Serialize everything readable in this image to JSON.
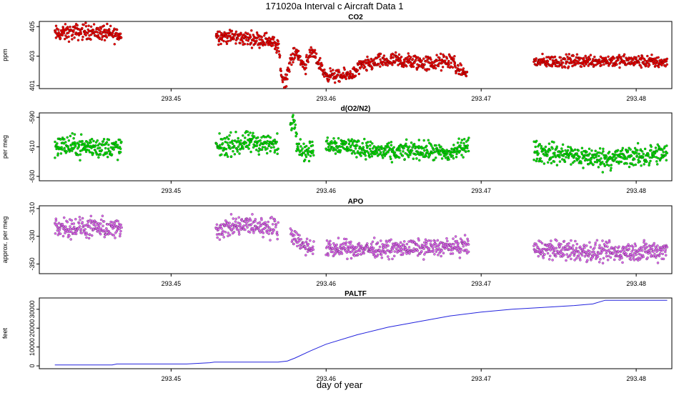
{
  "title": "171020a   Interval c Aircraft Data 1",
  "xlabel": "day of year",
  "colors": {
    "co2": "#ee0000",
    "o2n2": "#00dd00",
    "apo": "#dd66ee",
    "paltf": "#2222dd",
    "outline": "#000000"
  },
  "chart_data": [
    {
      "type": "scatter",
      "title": "CO2",
      "ylabel": "ppm",
      "xlim": [
        293.4415,
        293.4823
      ],
      "ylim": [
        400.8,
        405.35
      ],
      "xticks": [
        293.45,
        293.46,
        293.47,
        293.48
      ],
      "xtick_labels": [
        "293.45",
        "293.46",
        "293.47",
        "293.48"
      ],
      "yticks": [
        401,
        403,
        405
      ],
      "ytick_labels": [
        "401",
        "403",
        "405"
      ],
      "series": [
        {
          "name": "CO2",
          "segments": [
            {
              "x0": 293.4425,
              "x1": 293.4468,
              "trend": [
                [
                  0,
                  404.5
                ],
                [
                  0.5,
                  404.7
                ],
                [
                  1,
                  404.4
                ]
              ],
              "noise": 0.45
            },
            {
              "x0": 293.4529,
              "x1": 293.4569,
              "trend": [
                [
                  0,
                  404.4
                ],
                [
                  0.5,
                  404.2
                ],
                [
                  0.85,
                  404.1
                ],
                [
                  1,
                  403.6
                ]
              ],
              "noise": 0.4
            },
            {
              "x0": 293.4569,
              "x1": 293.4571,
              "trend": [
                [
                  0,
                  403.8
                ],
                [
                  1,
                  402.0
                ]
              ],
              "noise": 0.3
            },
            {
              "x0": 293.4571,
              "x1": 293.4575,
              "trend": [
                [
                  0,
                  401.7
                ],
                [
                  0.5,
                  401.4
                ],
                [
                  1,
                  401.5
                ]
              ],
              "noise": 0.4
            },
            {
              "x0": 293.4575,
              "x1": 293.4582,
              "trend": [
                [
                  0,
                  402.0
                ],
                [
                  0.5,
                  403.0
                ],
                [
                  1,
                  403.4
                ]
              ],
              "noise": 0.35
            },
            {
              "x0": 293.4582,
              "x1": 293.4587,
              "trend": [
                [
                  0,
                  402.9
                ],
                [
                  1,
                  402.2
                ]
              ],
              "noise": 0.35
            },
            {
              "x0": 293.4587,
              "x1": 293.4598,
              "trend": [
                [
                  0,
                  402.8
                ],
                [
                  0.4,
                  403.2
                ],
                [
                  0.7,
                  402.6
                ],
                [
                  1,
                  402.2
                ]
              ],
              "noise": 0.35
            },
            {
              "x0": 293.4598,
              "x1": 293.462,
              "trend": [
                [
                  0,
                  401.8
                ],
                [
                  0.5,
                  401.6
                ],
                [
                  1,
                  401.9
                ]
              ],
              "noise": 0.35
            },
            {
              "x0": 293.462,
              "x1": 293.4645,
              "trend": [
                [
                  0,
                  402.2
                ],
                [
                  0.5,
                  402.6
                ],
                [
                  1,
                  402.7
                ]
              ],
              "noise": 0.4
            },
            {
              "x0": 293.4645,
              "x1": 293.4683,
              "trend": [
                [
                  0,
                  402.7
                ],
                [
                  0.6,
                  402.5
                ],
                [
                  1,
                  402.7
                ]
              ],
              "noise": 0.45
            },
            {
              "x0": 293.4683,
              "x1": 293.4691,
              "trend": [
                [
                  0,
                  402.2
                ],
                [
                  1,
                  401.8
                ]
              ],
              "noise": 0.3
            },
            {
              "x0": 293.4734,
              "x1": 293.482,
              "trend": [
                [
                  0,
                  402.6
                ],
                [
                  0.5,
                  402.7
                ],
                [
                  1,
                  402.6
                ]
              ],
              "noise": 0.35
            }
          ]
        }
      ]
    },
    {
      "type": "scatter",
      "title": "d(O2/N2)",
      "ylabel": "per meg",
      "xlim": [
        293.4415,
        293.4823
      ],
      "ylim": [
        -633,
        -587
      ],
      "xticks": [
        293.45,
        293.46,
        293.47,
        293.48
      ],
      "xtick_labels": [
        "293.45",
        "293.46",
        "293.47",
        "293.48"
      ],
      "yticks": [
        -630,
        -610,
        -590
      ],
      "ytick_labels": [
        "-630",
        "-610",
        "-590"
      ],
      "series": [
        {
          "name": "d(O2/N2)",
          "segments": [
            {
              "x0": 293.4425,
              "x1": 293.4468,
              "trend": [
                [
                  0,
                  -609
                ],
                [
                  1,
                  -611
                ]
              ],
              "noise": 6
            },
            {
              "x0": 293.4529,
              "x1": 293.4569,
              "trend": [
                [
                  0,
                  -610
                ],
                [
                  0.6,
                  -607
                ],
                [
                  1,
                  -609
                ]
              ],
              "noise": 6
            },
            {
              "x0": 293.4577,
              "x1": 293.4581,
              "trend": [
                [
                  0,
                  -596
                ],
                [
                  0.5,
                  -592
                ],
                [
                  1,
                  -598
                ]
              ],
              "noise": 4
            },
            {
              "x0": 293.4581,
              "x1": 293.4592,
              "trend": [
                [
                  0,
                  -608
                ],
                [
                  0.5,
                  -614
                ],
                [
                  1,
                  -612
                ]
              ],
              "noise": 5
            },
            {
              "x0": 293.46,
              "x1": 293.4625,
              "trend": [
                [
                  0,
                  -608
                ],
                [
                  0.5,
                  -609
                ],
                [
                  1,
                  -611
                ]
              ],
              "noise": 5
            },
            {
              "x0": 293.4625,
              "x1": 293.466,
              "trend": [
                [
                  0,
                  -612
                ],
                [
                  0.5,
                  -614
                ],
                [
                  1,
                  -612
                ]
              ],
              "noise": 5
            },
            {
              "x0": 293.466,
              "x1": 293.4692,
              "trend": [
                [
                  0,
                  -612
                ],
                [
                  0.6,
                  -615
                ],
                [
                  1,
                  -608
                ]
              ],
              "noise": 5
            },
            {
              "x0": 293.4734,
              "x1": 293.482,
              "trend": [
                [
                  0,
                  -613
                ],
                [
                  0.5,
                  -618
                ],
                [
                  1,
                  -615
                ]
              ],
              "noise": 6
            }
          ]
        }
      ]
    },
    {
      "type": "scatter",
      "title": "APO",
      "ylabel": "approx. per meg",
      "xlim": [
        293.4415,
        293.4823
      ],
      "ylim": [
        -357,
        -308
      ],
      "xticks": [
        293.45,
        293.46,
        293.47,
        293.48
      ],
      "xtick_labels": [
        "293.45",
        "293.46",
        "293.47",
        "293.48"
      ],
      "yticks": [
        -350,
        -330,
        -310
      ],
      "ytick_labels": [
        "-350",
        "-330",
        "-310"
      ],
      "series": [
        {
          "name": "APO",
          "segments": [
            {
              "x0": 293.4425,
              "x1": 293.4468,
              "trend": [
                [
                  0,
                  -323
                ],
                [
                  0.5,
                  -324
                ],
                [
                  1,
                  -325
                ]
              ],
              "noise": 6
            },
            {
              "x0": 293.4529,
              "x1": 293.4569,
              "trend": [
                [
                  0,
                  -325
                ],
                [
                  0.5,
                  -322
                ],
                [
                  1,
                  -324
                ]
              ],
              "noise": 6
            },
            {
              "x0": 293.4577,
              "x1": 293.4592,
              "trend": [
                [
                  0,
                  -327
                ],
                [
                  0.5,
                  -336
                ],
                [
                  1,
                  -339
                ]
              ],
              "noise": 5
            },
            {
              "x0": 293.46,
              "x1": 293.4692,
              "trend": [
                [
                  0,
                  -339
                ],
                [
                  0.5,
                  -339
                ],
                [
                  1,
                  -337
                ]
              ],
              "noise": 5
            },
            {
              "x0": 293.4734,
              "x1": 293.482,
              "trend": [
                [
                  0,
                  -339
                ],
                [
                  0.5,
                  -342
                ],
                [
                  1,
                  -340
                ]
              ],
              "noise": 6
            }
          ]
        }
      ]
    },
    {
      "type": "line",
      "title": "PALTF",
      "ylabel": "feet",
      "xlim": [
        293.4415,
        293.4823
      ],
      "ylim": [
        -1500,
        36000
      ],
      "xticks": [
        293.45,
        293.46,
        293.47,
        293.48
      ],
      "xtick_labels": [
        "293.45",
        "293.46",
        "293.47",
        "293.48"
      ],
      "yticks": [
        0,
        10000,
        20000,
        30000
      ],
      "ytick_labels": [
        "0",
        "10000",
        "20000",
        "30000"
      ],
      "series": [
        {
          "name": "PALTF",
          "x": [
            293.4425,
            293.445,
            293.4462,
            293.4465,
            293.45,
            293.451,
            293.4525,
            293.4528,
            293.4569,
            293.4575,
            293.458,
            293.459,
            293.46,
            293.462,
            293.464,
            293.466,
            293.468,
            293.47,
            293.472,
            293.474,
            293.476,
            293.4772,
            293.478,
            293.479,
            293.482
          ],
          "y": [
            500,
            500,
            500,
            1000,
            1000,
            1000,
            1700,
            2000,
            2000,
            2600,
            4200,
            8000,
            11500,
            16500,
            20500,
            23500,
            26500,
            28500,
            30000,
            31000,
            32000,
            32800,
            34800,
            34800,
            34800
          ]
        }
      ]
    }
  ]
}
